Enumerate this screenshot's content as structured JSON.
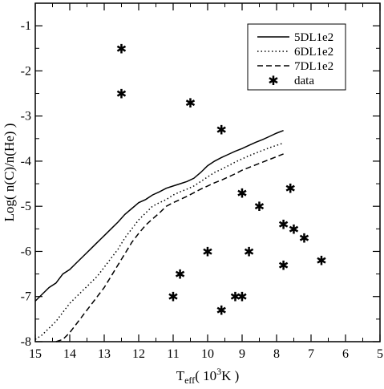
{
  "chart_data": {
    "type": "line",
    "title": "",
    "xlabel": "T",
    "xlabel_sub": "eff",
    "xlabel_unit_pre": "( 10",
    "xlabel_unit_sup": "3",
    "xlabel_unit_post": "K )",
    "ylabel": "Log( n(C)/n(He) )",
    "xlim": [
      15,
      5
    ],
    "ylim": [
      -8,
      -0.5
    ],
    "x_reversed": true,
    "x_ticks": [
      15,
      14,
      13,
      12,
      11,
      10,
      9,
      8,
      7,
      6,
      5
    ],
    "y_ticks": [
      -8,
      -7,
      -6,
      -5,
      -4,
      -3,
      -2,
      -1
    ],
    "legend_position": "top-right",
    "series": [
      {
        "name": "5DL1e2",
        "style": "solid",
        "points": [
          [
            15.0,
            -7.1
          ],
          [
            14.8,
            -6.95
          ],
          [
            14.6,
            -6.8
          ],
          [
            14.4,
            -6.7
          ],
          [
            14.2,
            -6.5
          ],
          [
            14.0,
            -6.4
          ],
          [
            13.8,
            -6.25
          ],
          [
            13.6,
            -6.1
          ],
          [
            13.4,
            -5.95
          ],
          [
            13.2,
            -5.8
          ],
          [
            13.0,
            -5.65
          ],
          [
            12.8,
            -5.5
          ],
          [
            12.6,
            -5.35
          ],
          [
            12.4,
            -5.18
          ],
          [
            12.2,
            -5.05
          ],
          [
            12.0,
            -4.92
          ],
          [
            11.8,
            -4.85
          ],
          [
            11.6,
            -4.75
          ],
          [
            11.4,
            -4.68
          ],
          [
            11.2,
            -4.6
          ],
          [
            11.0,
            -4.55
          ],
          [
            10.8,
            -4.5
          ],
          [
            10.6,
            -4.45
          ],
          [
            10.4,
            -4.38
          ],
          [
            10.2,
            -4.25
          ],
          [
            10.0,
            -4.1
          ],
          [
            9.8,
            -4.0
          ],
          [
            9.6,
            -3.92
          ],
          [
            9.4,
            -3.85
          ],
          [
            9.2,
            -3.78
          ],
          [
            9.0,
            -3.72
          ],
          [
            8.8,
            -3.65
          ],
          [
            8.6,
            -3.58
          ],
          [
            8.4,
            -3.52
          ],
          [
            8.2,
            -3.45
          ],
          [
            8.0,
            -3.38
          ],
          [
            7.8,
            -3.32
          ]
        ]
      },
      {
        "name": "6DL1e2",
        "style": "dotted",
        "points": [
          [
            15.0,
            -7.95
          ],
          [
            14.8,
            -7.85
          ],
          [
            14.6,
            -7.7
          ],
          [
            14.4,
            -7.55
          ],
          [
            14.2,
            -7.35
          ],
          [
            14.0,
            -7.15
          ],
          [
            13.8,
            -7.0
          ],
          [
            13.6,
            -6.85
          ],
          [
            13.4,
            -6.7
          ],
          [
            13.2,
            -6.55
          ],
          [
            13.0,
            -6.35
          ],
          [
            12.8,
            -6.15
          ],
          [
            12.6,
            -5.95
          ],
          [
            12.4,
            -5.7
          ],
          [
            12.2,
            -5.5
          ],
          [
            12.0,
            -5.3
          ],
          [
            11.8,
            -5.15
          ],
          [
            11.6,
            -5.0
          ],
          [
            11.4,
            -4.92
          ],
          [
            11.2,
            -4.85
          ],
          [
            11.0,
            -4.75
          ],
          [
            10.8,
            -4.68
          ],
          [
            10.6,
            -4.62
          ],
          [
            10.4,
            -4.55
          ],
          [
            10.2,
            -4.45
          ],
          [
            10.0,
            -4.35
          ],
          [
            9.8,
            -4.25
          ],
          [
            9.6,
            -4.18
          ],
          [
            9.4,
            -4.1
          ],
          [
            9.2,
            -4.02
          ],
          [
            9.0,
            -3.95
          ],
          [
            8.8,
            -3.88
          ],
          [
            8.6,
            -3.82
          ],
          [
            8.4,
            -3.76
          ],
          [
            8.2,
            -3.7
          ],
          [
            8.0,
            -3.65
          ],
          [
            7.8,
            -3.6
          ]
        ]
      },
      {
        "name": "7DL1e2",
        "style": "dashed",
        "points": [
          [
            14.4,
            -8.0
          ],
          [
            14.2,
            -7.95
          ],
          [
            14.0,
            -7.8
          ],
          [
            13.8,
            -7.6
          ],
          [
            13.6,
            -7.4
          ],
          [
            13.4,
            -7.2
          ],
          [
            13.2,
            -7.0
          ],
          [
            13.0,
            -6.8
          ],
          [
            12.8,
            -6.55
          ],
          [
            12.6,
            -6.3
          ],
          [
            12.4,
            -6.05
          ],
          [
            12.2,
            -5.8
          ],
          [
            12.0,
            -5.6
          ],
          [
            11.8,
            -5.42
          ],
          [
            11.6,
            -5.28
          ],
          [
            11.4,
            -5.15
          ],
          [
            11.2,
            -5.0
          ],
          [
            11.0,
            -4.92
          ],
          [
            10.8,
            -4.85
          ],
          [
            10.6,
            -4.78
          ],
          [
            10.4,
            -4.7
          ],
          [
            10.2,
            -4.62
          ],
          [
            10.0,
            -4.55
          ],
          [
            9.8,
            -4.48
          ],
          [
            9.6,
            -4.42
          ],
          [
            9.4,
            -4.35
          ],
          [
            9.2,
            -4.28
          ],
          [
            9.0,
            -4.2
          ],
          [
            8.8,
            -4.14
          ],
          [
            8.6,
            -4.08
          ],
          [
            8.4,
            -4.02
          ],
          [
            8.2,
            -3.96
          ],
          [
            8.0,
            -3.9
          ],
          [
            7.8,
            -3.84
          ]
        ]
      },
      {
        "name": "data",
        "style": "points",
        "points": [
          [
            12.5,
            -1.5
          ],
          [
            12.5,
            -2.5
          ],
          [
            10.5,
            -2.7
          ],
          [
            9.6,
            -3.3
          ],
          [
            9.0,
            -4.7
          ],
          [
            8.5,
            -5.0
          ],
          [
            7.6,
            -4.6
          ],
          [
            7.8,
            -5.4
          ],
          [
            7.5,
            -5.5
          ],
          [
            7.2,
            -5.7
          ],
          [
            10.0,
            -6.0
          ],
          [
            8.8,
            -6.0
          ],
          [
            6.7,
            -6.2
          ],
          [
            7.8,
            -6.3
          ],
          [
            10.8,
            -6.5
          ],
          [
            11.0,
            -7.0
          ],
          [
            9.2,
            -7.0
          ],
          [
            9.0,
            -7.0
          ],
          [
            9.6,
            -7.3
          ]
        ]
      }
    ]
  }
}
